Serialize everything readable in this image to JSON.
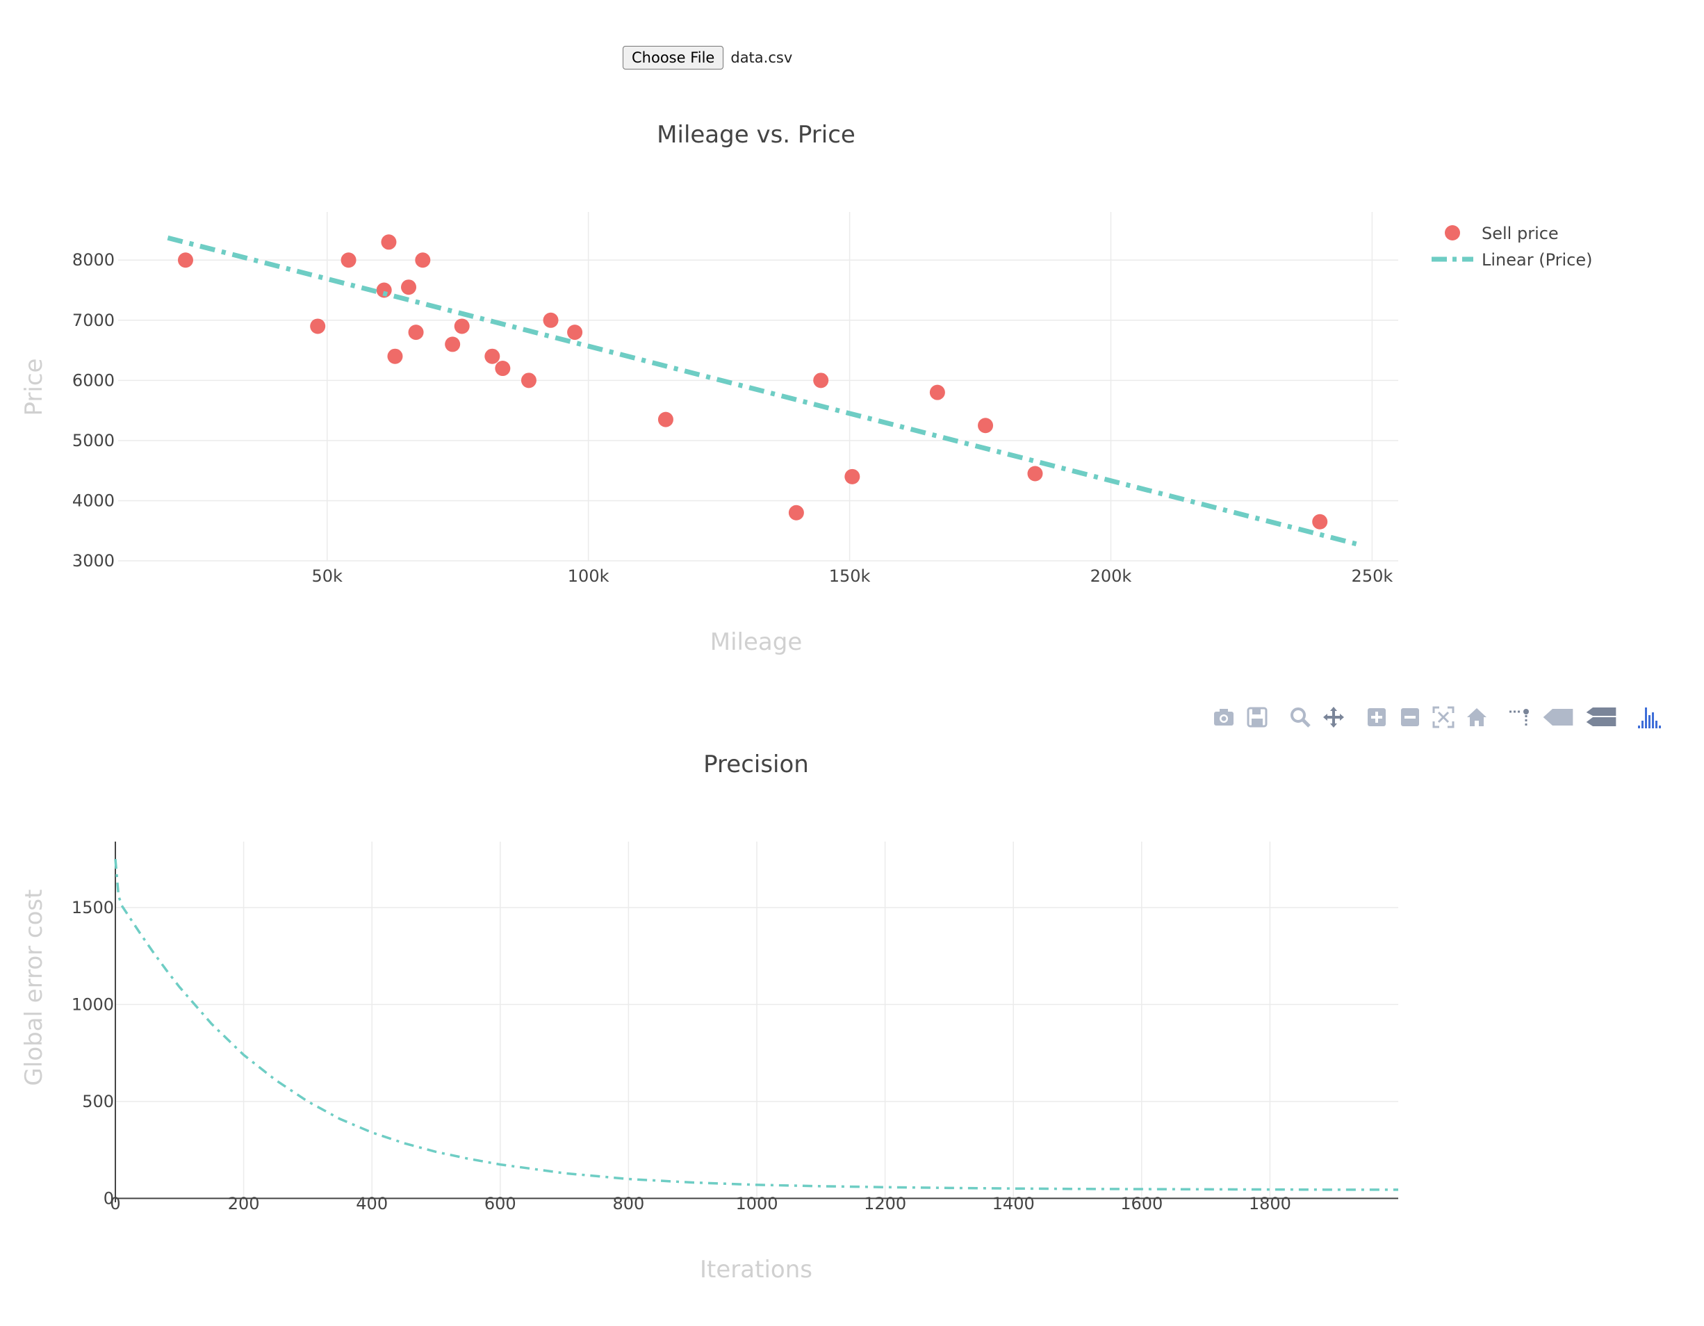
{
  "file_input": {
    "button_label": "Choose File",
    "file_name": "data.csv"
  },
  "modebar": {
    "icons": [
      "camera-icon",
      "save-icon",
      "zoom-icon",
      "pan-icon",
      "zoom-in-icon",
      "zoom-out-icon",
      "autoscale-icon",
      "reset-axes-icon",
      "spike-lines-icon",
      "hover-closest-icon",
      "hover-compare-icon",
      "plotly-logo-icon"
    ],
    "icon_color": "#b0b9c9",
    "active_color": "#7a8599",
    "logo_color": "#3f6ed8"
  },
  "chart_data": [
    {
      "type": "scatter",
      "title": "Mileage vs. Price",
      "xlabel": "Mileage",
      "ylabel": "Price",
      "xlim": [
        10000,
        255000
      ],
      "ylim": [
        3000,
        8800
      ],
      "xticks": [
        50000,
        100000,
        150000,
        200000,
        250000
      ],
      "xtick_labels": [
        "50k",
        "100k",
        "150k",
        "200k",
        "250k"
      ],
      "yticks": [
        3000,
        4000,
        5000,
        6000,
        7000,
        8000
      ],
      "ytick_labels": [
        "3000",
        "4000",
        "5000",
        "6000",
        "7000",
        "8000"
      ],
      "grid": true,
      "legend_position": "top-right",
      "series": [
        {
          "name": "Sell price",
          "mode": "markers",
          "color": "#ef6b68",
          "x": [
            22900,
            48200,
            54100,
            60900,
            61800,
            63000,
            65600,
            67000,
            68300,
            74000,
            75800,
            81600,
            83600,
            88600,
            92800,
            97400,
            114800,
            139800,
            144500,
            150500,
            166800,
            176000,
            185500,
            240000
          ],
          "y": [
            8000,
            6900,
            8000,
            7500,
            8300,
            6400,
            7550,
            6800,
            8000,
            6600,
            6900,
            6400,
            6200,
            6000,
            7000,
            6800,
            5350,
            3800,
            6000,
            4400,
            5800,
            5250,
            4450,
            3650
          ]
        },
        {
          "name": "Linear (Price)",
          "mode": "lines",
          "dash": "dashdot",
          "color": "#6ecdc4",
          "x": [
            19500,
            247500
          ],
          "y": [
            8370,
            3270
          ]
        }
      ]
    },
    {
      "type": "line",
      "title": "Precision",
      "xlabel": "Iterations",
      "ylabel": "Global error cost",
      "xlim": [
        0,
        2000
      ],
      "ylim": [
        -20,
        1840
      ],
      "xticks": [
        0,
        200,
        400,
        600,
        800,
        1000,
        1200,
        1400,
        1600,
        1800
      ],
      "xtick_labels": [
        "0",
        "200",
        "400",
        "600",
        "800",
        "1000",
        "1200",
        "1400",
        "1600",
        "1800"
      ],
      "yticks": [
        0,
        500,
        1000,
        1500
      ],
      "ytick_labels": [
        "0",
        "500",
        "1000",
        "1500"
      ],
      "grid": true,
      "series": [
        {
          "dash": "dashdot",
          "color": "#6ecdc4",
          "x": [
            0,
            5,
            10,
            20,
            40,
            60,
            80,
            100,
            150,
            200,
            250,
            300,
            350,
            400,
            450,
            500,
            550,
            600,
            700,
            800,
            900,
            1000,
            1100,
            1200,
            1300,
            1400,
            1500,
            1600,
            1700,
            1800,
            1900,
            2000
          ],
          "y": [
            1750,
            1560,
            1510,
            1460,
            1360,
            1265,
            1175,
            1090,
            900,
            740,
            610,
            500,
            410,
            340,
            285,
            240,
            205,
            175,
            130,
            100,
            82,
            70,
            63,
            58,
            54,
            51,
            49,
            48,
            47,
            46,
            45,
            45
          ]
        }
      ]
    }
  ]
}
